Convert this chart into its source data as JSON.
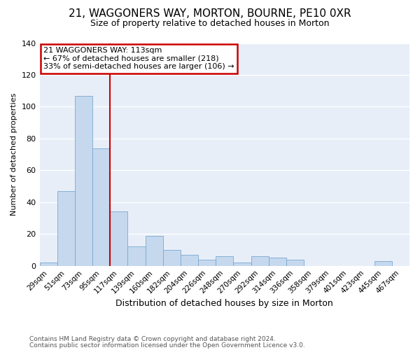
{
  "title": "21, WAGGONERS WAY, MORTON, BOURNE, PE10 0XR",
  "subtitle": "Size of property relative to detached houses in Morton",
  "xlabel": "Distribution of detached houses by size in Morton",
  "ylabel": "Number of detached properties",
  "bar_labels": [
    "29sqm",
    "51sqm",
    "73sqm",
    "95sqm",
    "117sqm",
    "139sqm",
    "160sqm",
    "182sqm",
    "204sqm",
    "226sqm",
    "248sqm",
    "270sqm",
    "292sqm",
    "314sqm",
    "336sqm",
    "358sqm",
    "379sqm",
    "401sqm",
    "423sqm",
    "445sqm",
    "467sqm"
  ],
  "bar_values": [
    2,
    47,
    107,
    74,
    34,
    12,
    19,
    10,
    7,
    4,
    6,
    2,
    6,
    5,
    4,
    0,
    0,
    0,
    0,
    3,
    0
  ],
  "bar_color": "#c5d8ee",
  "bar_edge_color": "#7aa8d0",
  "vline_index": 4,
  "vline_color": "#cc0000",
  "ylim": [
    0,
    140
  ],
  "yticks": [
    0,
    20,
    40,
    60,
    80,
    100,
    120,
    140
  ],
  "annotation_line1": "21 WAGGONERS WAY: 113sqm",
  "annotation_line2": "← 67% of detached houses are smaller (218)",
  "annotation_line3": "33% of semi-detached houses are larger (106) →",
  "annotation_box_color": "#cc0000",
  "footer1": "Contains HM Land Registry data © Crown copyright and database right 2024.",
  "footer2": "Contains public sector information licensed under the Open Government Licence v3.0.",
  "background_color": "#e8eef8",
  "grid_color": "#ffffff",
  "title_fontsize": 11,
  "subtitle_fontsize": 9,
  "xlabel_fontsize": 9,
  "ylabel_fontsize": 8,
  "tick_fontsize": 7.5,
  "annotation_fontsize": 8,
  "footer_fontsize": 6.5
}
